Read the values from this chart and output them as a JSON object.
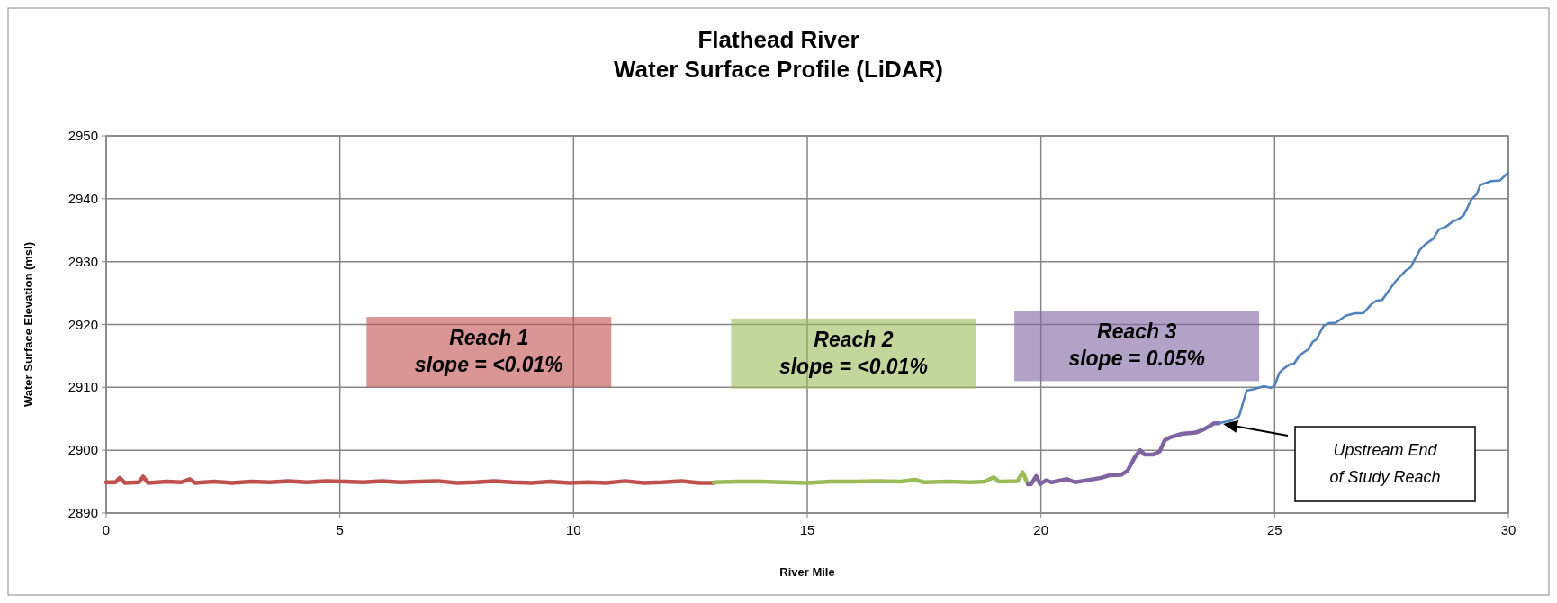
{
  "chart_data": {
    "type": "line",
    "title": "Flathead River\nWater Surface Profile (LiDAR)",
    "xlabel": "River Mile",
    "ylabel": "Water Surface Elevation (msl)",
    "xlim": [
      0,
      30
    ],
    "xticks": [
      0,
      5,
      10,
      15,
      20,
      25,
      30
    ],
    "ylim": [
      2890,
      2950
    ],
    "yticks": [
      2890,
      2900,
      2910,
      2920,
      2930,
      2940,
      2950
    ],
    "grid": true,
    "series": [
      {
        "color": "#c0504d",
        "x": [
          0,
          0.2,
          0.29,
          0.4,
          0.7,
          0.79,
          0.9,
          1.3,
          1.6,
          1.79,
          1.9,
          2.3,
          2.7,
          3.1,
          3.5,
          3.9,
          4.3,
          4.7,
          5.1,
          5.5,
          5.9,
          6.3,
          6.7,
          7.1,
          7.5,
          7.9,
          8.3,
          8.7,
          9.1,
          9.5,
          9.9,
          10.3,
          10.7,
          11.1,
          11.5,
          11.9,
          12.3,
          12.7,
          13
        ],
        "values": [
          2894.9,
          2894.9,
          2895.6,
          2894.8,
          2894.9,
          2895.8,
          2894.8,
          2895.0,
          2894.9,
          2895.4,
          2894.8,
          2895.0,
          2894.8,
          2895.0,
          2894.9,
          2895.1,
          2894.9,
          2895.1,
          2895.0,
          2894.9,
          2895.1,
          2894.9,
          2895.0,
          2895.1,
          2894.8,
          2894.9,
          2895.1,
          2894.9,
          2894.8,
          2895.0,
          2894.8,
          2894.9,
          2894.8,
          2895.1,
          2894.8,
          2894.9,
          2895.1,
          2894.8,
          2894.8
        ]
      },
      {
        "color": "#9bbb59",
        "x": [
          13,
          13.5,
          14,
          14.5,
          15,
          15.5,
          16,
          16.5,
          17,
          17.3,
          17.5,
          18,
          18.5,
          18.8,
          18.99,
          19.1,
          19.5,
          19.61,
          19.72
        ],
        "values": [
          2894.9,
          2895.0,
          2895.0,
          2894.9,
          2894.8,
          2895.0,
          2895.0,
          2895.1,
          2895.0,
          2895.3,
          2894.9,
          2895.0,
          2894.9,
          2895.0,
          2895.7,
          2895.0,
          2895.1,
          2896.5,
          2894.6
        ]
      },
      {
        "color": "#8064a2",
        "x": [
          19.72,
          19.79,
          19.9,
          19.98,
          20.11,
          20.23,
          20.56,
          20.73,
          21.29,
          21.46,
          21.72,
          21.85,
          22.01,
          22.12,
          22.22,
          22.4,
          22.54,
          22.65,
          22.75,
          23.01,
          23.31,
          23.48,
          23.71,
          23.81
        ],
        "values": [
          2894.6,
          2894.6,
          2895.9,
          2894.6,
          2895.2,
          2894.9,
          2895.4,
          2894.9,
          2895.6,
          2896.0,
          2896.1,
          2896.7,
          2898.9,
          2900.0,
          2899.3,
          2899.3,
          2899.8,
          2901.6,
          2902.0,
          2902.6,
          2902.8,
          2903.3,
          2904.3,
          2904.3
        ]
      },
      {
        "color": "#4f81bd",
        "x": [
          23.81,
          24.07,
          24.24,
          24.4,
          24.54,
          24.77,
          24.92,
          25.0,
          25.1,
          25.2,
          25.33,
          25.41,
          25.53,
          25.73,
          25.81,
          25.89,
          26.05,
          26.16,
          26.31,
          26.52,
          26.72,
          26.9,
          27.08,
          27.18,
          27.3,
          27.58,
          27.81,
          27.91,
          28.11,
          28.23,
          28.39,
          28.51,
          28.68,
          28.81,
          28.92,
          29.04,
          29.21,
          29.32,
          29.4,
          29.64,
          29.82,
          30.0
        ],
        "values": [
          2904.3,
          2904.7,
          2905.4,
          2909.5,
          2909.7,
          2910.2,
          2909.9,
          2910.3,
          2912.3,
          2913.0,
          2913.7,
          2913.7,
          2915.1,
          2916.1,
          2917.2,
          2917.6,
          2919.8,
          2920.2,
          2920.3,
          2921.4,
          2921.8,
          2921.8,
          2923.3,
          2923.8,
          2923.9,
          2926.8,
          2928.6,
          2929.1,
          2931.9,
          2932.8,
          2933.6,
          2935.1,
          2935.6,
          2936.4,
          2936.7,
          2937.3,
          2939.9,
          2940.7,
          2942.2,
          2942.8,
          2942.9,
          2944.2
        ]
      }
    ],
    "annotations": [
      "Reach 1\nslope = <0.01%",
      "Reach 2\nslope = <0.01%",
      "Reach 3\nslope = 0.05%",
      "Upstream End\nof Study Reach"
    ]
  }
}
